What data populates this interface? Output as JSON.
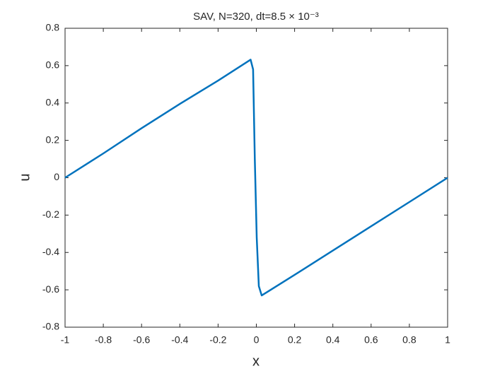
{
  "chart_data": {
    "type": "line",
    "title": "SAV, N=320, dt=8.5 × 10⁻³",
    "x_label": "x",
    "y_label": "u",
    "x": [
      -1,
      -0.8,
      -0.6,
      -0.4,
      -0.2,
      -0.03,
      -0.017,
      -0.008,
      0.002,
      0.013,
      0.028,
      0.2,
      0.4,
      0.6,
      0.8,
      1
    ],
    "values": [
      0,
      0.13,
      0.265,
      0.395,
      0.52,
      0.632,
      0.58,
      0.1,
      -0.32,
      -0.58,
      -0.63,
      -0.52,
      -0.39,
      -0.26,
      -0.13,
      0
    ],
    "color": "#0072bd",
    "xlim": [
      -1,
      1
    ],
    "xticks": [
      -1,
      -0.8,
      -0.6,
      -0.4,
      -0.2,
      0,
      0.2,
      0.4,
      0.6,
      0.8,
      1
    ],
    "ylim": [
      -0.8,
      0.8
    ],
    "yticks": [
      -0.8,
      -0.6,
      -0.4,
      -0.2,
      0,
      0.2,
      0.4,
      0.6,
      0.8
    ],
    "grid": false
  }
}
